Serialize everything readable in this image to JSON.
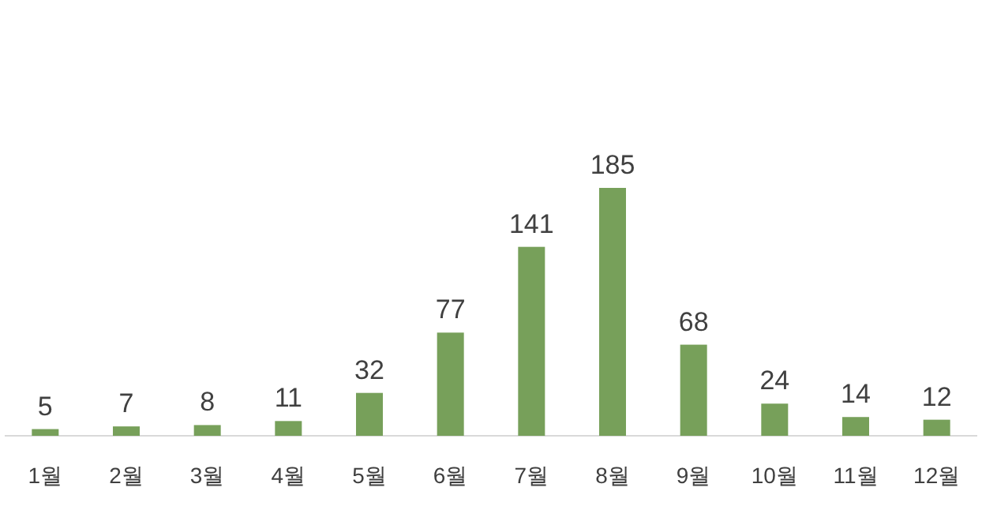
{
  "chart_data": {
    "type": "bar",
    "categories": [
      "1월",
      "2월",
      "3월",
      "4월",
      "5월",
      "6월",
      "7월",
      "8월",
      "9월",
      "10월",
      "11월",
      "12월"
    ],
    "values": [
      5,
      7,
      8,
      11,
      32,
      77,
      141,
      185,
      68,
      24,
      14,
      12
    ],
    "color": "#77a05a",
    "data_labels": true
  }
}
